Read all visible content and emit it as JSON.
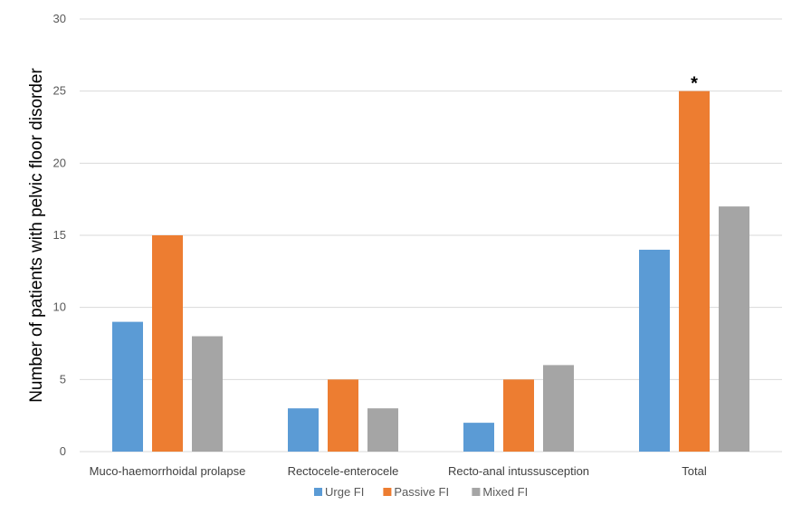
{
  "chart_data": {
    "type": "bar",
    "title": "",
    "xlabel": "",
    "ylabel": "Number of patients with pelvic floor disorder",
    "ylim": [
      0,
      30
    ],
    "yticks": [
      0,
      5,
      10,
      15,
      20,
      25,
      30
    ],
    "grid": true,
    "legend_position": "bottom",
    "categories": [
      "Muco-haemorrhoidal prolapse",
      "Rectocele-enterocele",
      "Recto-anal intussusception",
      "Total"
    ],
    "series": [
      {
        "name": "Urge FI",
        "color": "#5b9bd5",
        "values": [
          9,
          3,
          2,
          14
        ]
      },
      {
        "name": "Passive FI",
        "color": "#ed7d31",
        "values": [
          15,
          5,
          5,
          25
        ]
      },
      {
        "name": "Mixed FI",
        "color": "#a5a5a5",
        "values": [
          8,
          3,
          6,
          17
        ]
      }
    ],
    "annotations": [
      {
        "text": "*",
        "category": "Total",
        "series": "Passive FI"
      }
    ]
  }
}
